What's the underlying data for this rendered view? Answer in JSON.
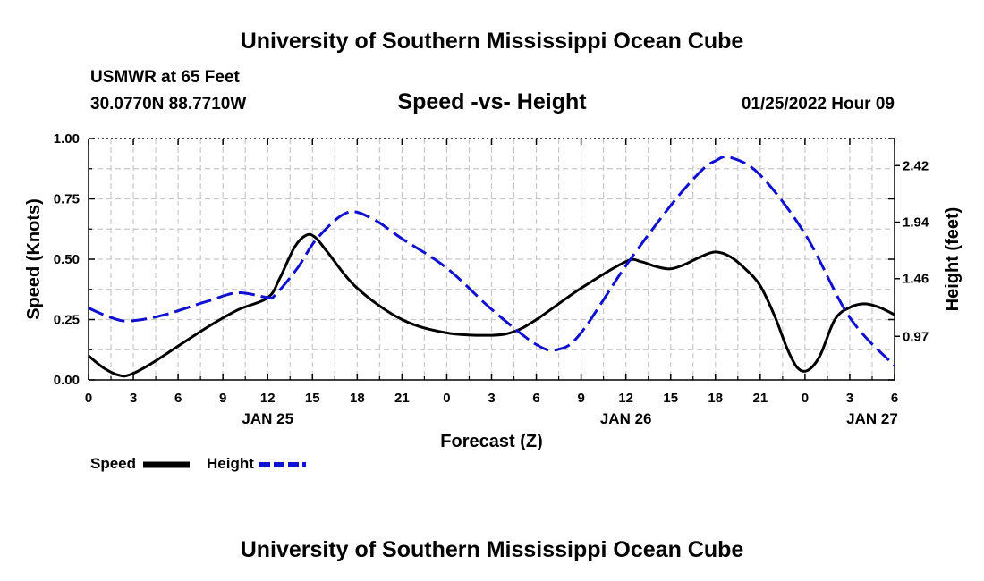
{
  "page": {
    "title_top": "University of Southern Mississippi Ocean Cube",
    "title_bottom": "University of Southern Mississippi Ocean Cube",
    "station": "USMWR at 65 Feet",
    "coords": "30.0770N  88.7710W",
    "subtitle": "Speed -vs- Height",
    "datetime": "01/25/2022 Hour 09"
  },
  "legend": {
    "speed_label": "Speed",
    "height_label": "Height"
  },
  "colors": {
    "speed": "#000000",
    "height": "#1010d0",
    "grid": "#c8c8c8"
  },
  "chart_data": {
    "type": "line",
    "title": "Speed -vs- Height",
    "xlabel": "Forecast (Z)",
    "ylabel": "Speed (Knots)",
    "y2label": "Height (feet)",
    "x_unit": "hours from 00Z Jan 25",
    "xlim": [
      0,
      54
    ],
    "ylim": [
      0,
      1.0
    ],
    "y2lim": [
      0.6,
      2.65
    ],
    "x_ticks": [
      0,
      3,
      6,
      9,
      12,
      15,
      18,
      21,
      24,
      27,
      30,
      33,
      36,
      39,
      42,
      45,
      48,
      51,
      54
    ],
    "x_tick_labels": [
      "0",
      "3",
      "6",
      "9",
      "12",
      "15",
      "18",
      "21",
      "0",
      "3",
      "6",
      "9",
      "12",
      "15",
      "18",
      "21",
      "0",
      "3",
      "6"
    ],
    "y_ticks": [
      0.0,
      0.25,
      0.5,
      0.75,
      1.0
    ],
    "y_tick_labels": [
      "0.00",
      "0.25",
      "0.50",
      "0.75",
      "1.00"
    ],
    "y2_ticks": [
      0.97,
      1.46,
      1.94,
      2.42
    ],
    "y2_tick_labels": [
      "0.97",
      "1.46",
      "1.94",
      "2.42"
    ],
    "date_labels": [
      {
        "x": 12,
        "label": "JAN 25"
      },
      {
        "x": 36,
        "label": "JAN 26"
      },
      {
        "x": 52.5,
        "label": "JAN 27"
      }
    ],
    "series": [
      {
        "name": "Speed",
        "axis": "left",
        "style": "solid",
        "x": [
          0,
          1,
          2,
          2.7,
          4,
          6,
          8,
          10,
          12,
          12.8,
          13.8,
          14.6,
          15.2,
          16,
          18,
          21,
          24,
          27,
          28.5,
          30,
          33,
          36,
          37,
          38,
          39,
          40,
          41,
          42,
          43,
          44,
          45,
          46,
          46.8,
          47.5,
          48.2,
          49,
          50,
          51,
          52,
          53,
          54
        ],
        "values": [
          0.1,
          0.05,
          0.02,
          0.02,
          0.06,
          0.14,
          0.22,
          0.29,
          0.34,
          0.42,
          0.55,
          0.6,
          0.59,
          0.53,
          0.38,
          0.25,
          0.195,
          0.185,
          0.2,
          0.25,
          0.38,
          0.49,
          0.49,
          0.47,
          0.46,
          0.48,
          0.51,
          0.53,
          0.51,
          0.46,
          0.39,
          0.26,
          0.13,
          0.05,
          0.04,
          0.1,
          0.25,
          0.3,
          0.315,
          0.3,
          0.27
        ]
      },
      {
        "name": "Height",
        "axis": "right",
        "style": "dashed",
        "x": [
          0,
          1.5,
          2.7,
          5,
          8,
          10,
          12,
          12.5,
          14,
          15.3,
          17.3,
          19,
          21,
          24,
          27,
          30,
          31.5,
          33,
          36,
          39,
          41,
          42,
          43,
          45,
          48,
          51,
          54
        ],
        "values": [
          1.21,
          1.13,
          1.1,
          1.15,
          1.27,
          1.34,
          1.3,
          1.32,
          1.55,
          1.8,
          2.02,
          1.97,
          1.8,
          1.55,
          1.2,
          0.9,
          0.86,
          1.0,
          1.57,
          2.08,
          2.37,
          2.46,
          2.49,
          2.34,
          1.84,
          1.13,
          0.72
        ]
      }
    ]
  }
}
